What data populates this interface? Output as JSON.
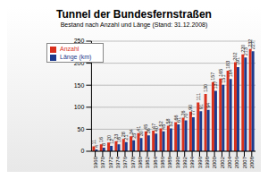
{
  "chart_data": {
    "type": "bar",
    "title": "Tunnel der Bundesfernstraßen",
    "subtitle": "Bestand nach Anzahl und Länge (Stand: 31.12.2008)",
    "categories": [
      "1960",
      "1970",
      "1972",
      "1974",
      "1976",
      "1978",
      "1980",
      "1982",
      "1984",
      "1986",
      "1988",
      "1990",
      "1992",
      "1994",
      "1996",
      "1998",
      "2000",
      "2002",
      "2004",
      "2006",
      "2007",
      "2008"
    ],
    "series": [
      {
        "name": "Anzahl",
        "color": "#d9301c",
        "values": [
          11,
          16,
          20,
          23,
          28,
          34,
          41,
          45,
          47,
          52,
          58,
          66,
          76,
          90,
          111,
          130,
          157,
          165,
          183,
          202,
          220,
          232
        ]
      },
      {
        "name": "Länge (km)",
        "color": "#1c3a8c",
        "values": [
          4,
          8,
          12,
          16,
          21,
          25,
          30,
          36,
          40,
          45,
          52,
          61,
          70,
          77,
          91,
          94,
          137,
          151,
          164,
          191,
          213,
          227
        ]
      }
    ],
    "ylim": [
      0,
      250
    ],
    "yticks": [
      0,
      50,
      100,
      150,
      200,
      250
    ],
    "grid": true,
    "legend": "upper left",
    "data_labels": true
  }
}
